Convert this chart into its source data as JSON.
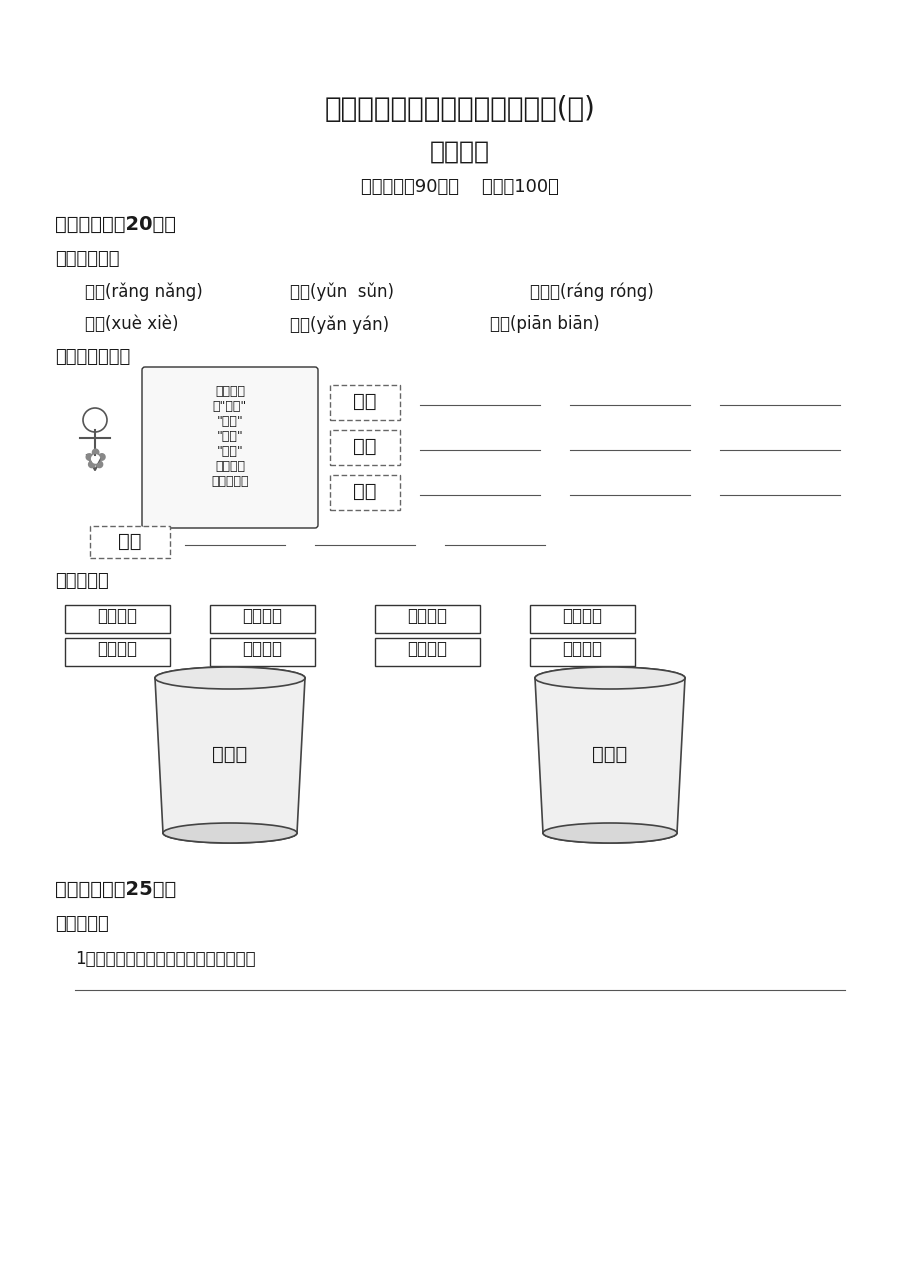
{
  "title1": "全国重点中学招生综合素质检测(一)",
  "title2": "冲刺名校",
  "subtitle": "测试时间：90分钟    总分：100分",
  "section1_title": "字词练兵场（20分）",
  "sub1": "一、小试牛刀",
  "words_row1": [
    "土壤(rǎng nǎng)",
    "陨石(yǔn  sǔn)",
    "毛茸茸(ráng róng)"
  ],
  "words_row2": [
    "玉屑(xuè xiè)",
    "繁衍(yǎn yán)",
    "扁舟(piān biān)"
  ],
  "sub2": "二、有趣的方位",
  "direction_labels": [
    "东西",
    "南北",
    "前后",
    "左右"
  ],
  "sub3": "三、我会分",
  "phrase_boxes": [
    "不屈不挠",
    "疯狂反扑",
    "和蔼可亲",
    "弄虚作假",
    "垂死挣扎",
    "平易近人",
    "损人利己",
    "精明强干"
  ],
  "barrel1_label": "褒义词",
  "barrel2_label": "贬义词",
  "section2_title": "句子训练营（25分）",
  "sub4": "四、纠错台",
  "sentence1": "1．同学们通过并讨论了这次活动计划。",
  "bg_color": "#ffffff",
  "text_color": "#1a1a1a",
  "line_color": "#555555"
}
